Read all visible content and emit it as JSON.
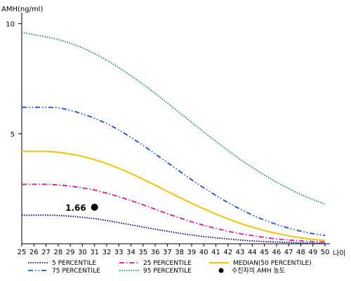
{
  "chart_data": {
    "type": "line",
    "ylabel": "AMH(ng/ml)",
    "xlabel": "나이",
    "x": [
      25,
      26,
      27,
      28,
      29,
      30,
      31,
      32,
      33,
      34,
      35,
      36,
      37,
      38,
      39,
      40,
      41,
      42,
      43,
      44,
      45,
      46,
      47,
      48,
      49,
      50
    ],
    "ylim": [
      0,
      10.5
    ],
    "xlim": [
      25,
      50
    ],
    "yticks": [
      5,
      10
    ],
    "grid": false,
    "legend_position": "bottom",
    "series": [
      {
        "name": "5 PERCENTILE",
        "color": "#000080",
        "style": "dotted",
        "values": [
          1.3,
          1.3,
          1.3,
          1.29,
          1.25,
          1.2,
          1.14,
          1.06,
          0.96,
          0.86,
          0.76,
          0.66,
          0.57,
          0.48,
          0.4,
          0.33,
          0.27,
          0.22,
          0.17,
          0.13,
          0.1,
          0.08,
          0.06,
          0.04,
          0.03,
          0.02
        ]
      },
      {
        "name": "25 PERCENTILE",
        "color": "#e0169b",
        "style": "dashdot",
        "values": [
          2.7,
          2.7,
          2.7,
          2.67,
          2.62,
          2.54,
          2.44,
          2.3,
          2.14,
          1.96,
          1.77,
          1.57,
          1.37,
          1.18,
          1.0,
          0.84,
          0.7,
          0.57,
          0.46,
          0.37,
          0.29,
          0.22,
          0.17,
          0.13,
          0.1,
          0.08
        ]
      },
      {
        "name": "MEDIAN(50 PERCENTILE)",
        "color": "#f2c500",
        "style": "solid",
        "values": [
          4.2,
          4.2,
          4.2,
          4.16,
          4.08,
          3.97,
          3.82,
          3.64,
          3.43,
          3.19,
          2.93,
          2.66,
          2.38,
          2.11,
          1.84,
          1.59,
          1.35,
          1.13,
          0.93,
          0.76,
          0.6,
          0.47,
          0.36,
          0.27,
          0.2,
          0.15
        ]
      },
      {
        "name": "75 PERCENTILE",
        "color": "#1f4ec9",
        "style": "dashdotdot",
        "values": [
          6.2,
          6.2,
          6.2,
          6.18,
          6.06,
          5.9,
          5.7,
          5.46,
          5.17,
          4.83,
          4.47,
          4.08,
          3.69,
          3.3,
          2.91,
          2.54,
          2.2,
          1.87,
          1.58,
          1.31,
          1.08,
          0.88,
          0.71,
          0.57,
          0.46,
          0.38
        ]
      },
      {
        "name": "95 PERCENTILE",
        "color": "#2e8b57",
        "style": "dotted",
        "values": [
          9.6,
          9.5,
          9.4,
          9.28,
          9.11,
          8.9,
          8.64,
          8.34,
          8.0,
          7.63,
          7.24,
          6.83,
          6.4,
          5.96,
          5.52,
          5.08,
          4.65,
          4.24,
          3.84,
          3.47,
          3.12,
          2.8,
          2.51,
          2.24,
          2.01,
          1.8
        ]
      }
    ],
    "patient_point": {
      "name": "수진자의 AMH 농도",
      "x": 31,
      "y": 1.66,
      "label": "1.66",
      "color": "#000000"
    }
  }
}
